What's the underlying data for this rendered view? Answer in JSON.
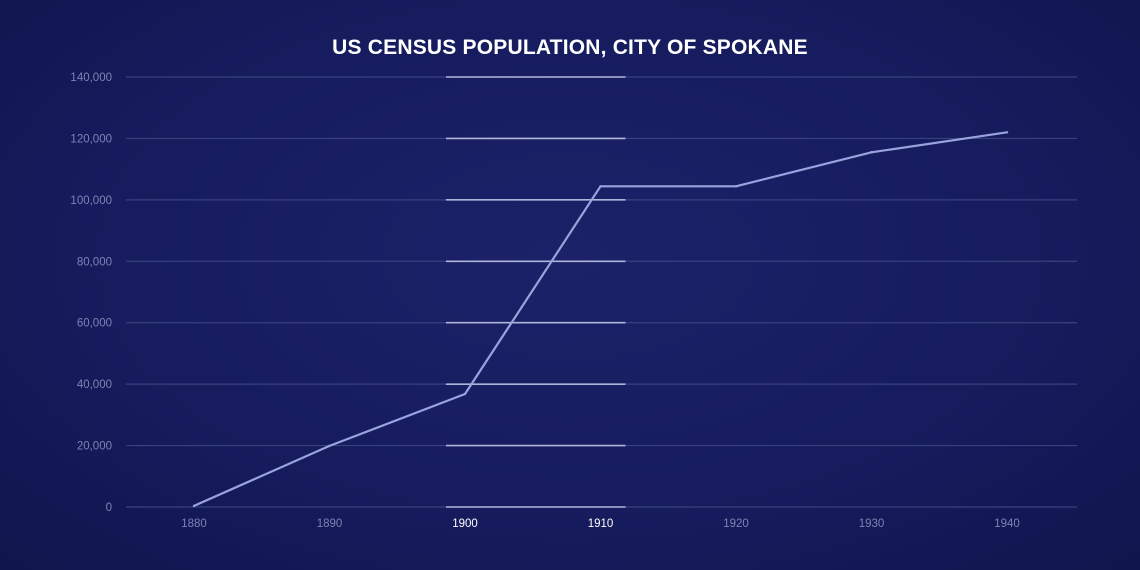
{
  "chart_data": {
    "type": "line",
    "title": "US CENSUS POPULATION, CITY OF SPOKANE",
    "xlabel": "",
    "ylabel": "",
    "x": [
      1880,
      1890,
      1900,
      1910,
      1920,
      1930,
      1940
    ],
    "x_tick_labels": [
      "1880",
      "1890",
      "1900",
      "1910",
      "1920",
      "1930",
      "1940"
    ],
    "y_tick_labels": [
      "0",
      "20,000",
      "40,000",
      "60,000",
      "80,000",
      "100,000",
      "120,000",
      "140,000"
    ],
    "y_ticks": [
      0,
      20000,
      40000,
      60000,
      80000,
      100000,
      120000,
      140000
    ],
    "ylim": [
      0,
      140000
    ],
    "grid": true,
    "highlight_range": [
      1900,
      1910
    ],
    "series": [
      {
        "values": [
          350,
          19900,
          36800,
          104400,
          104400,
          115500,
          122000
        ],
        "color": "#9aa3de"
      }
    ],
    "colors": {
      "background": "#161c5e",
      "grid": "#3a417f",
      "highlight_grid": "#b0b5d9",
      "tick_text": "#7d83b4",
      "highlight_tick_text": "#ffffff",
      "title_text": "#ffffff"
    }
  }
}
